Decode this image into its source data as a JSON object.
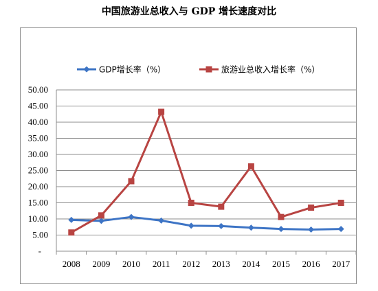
{
  "chart_data": {
    "type": "line",
    "title": "中国旅游业总收入与 GDP 增长速度对比",
    "categories": [
      "2008",
      "2009",
      "2010",
      "2011",
      "2012",
      "2013",
      "2014",
      "2015",
      "2016",
      "2017"
    ],
    "series": [
      {
        "name": "GDP增长率（%）",
        "color": "#3d74c5",
        "marker": "diamond",
        "values": [
          9.7,
          9.4,
          10.6,
          9.5,
          7.9,
          7.8,
          7.3,
          6.9,
          6.7,
          6.9
        ]
      },
      {
        "name": "旅游业总收入增长率（%）",
        "color": "#b84442",
        "marker": "square",
        "values": [
          5.8,
          11.1,
          21.7,
          43.2,
          15.0,
          13.8,
          26.3,
          10.6,
          13.5,
          15.0
        ]
      }
    ],
    "ylim": [
      0,
      50
    ],
    "yticks": [
      "-",
      "5.00",
      "10.00",
      "15.00",
      "20.00",
      "25.00",
      "30.00",
      "35.00",
      "40.00",
      "45.00",
      "50.00"
    ],
    "grid": true,
    "legend": "top"
  }
}
